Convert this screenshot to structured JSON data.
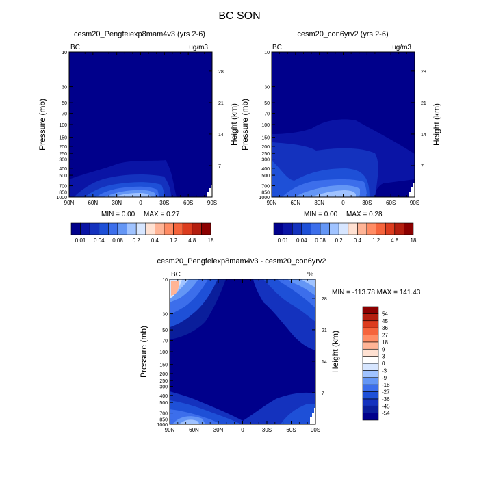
{
  "figure_title": "BC SON",
  "colors": {
    "absolute_palette": [
      "#00008b",
      "#0a14a5",
      "#1432be",
      "#1e50d7",
      "#3c6eeb",
      "#6496f5",
      "#a0c3ff",
      "#d7e6ff",
      "#ffe1d2",
      "#ffb496",
      "#ff8c64",
      "#f5643c",
      "#dc3c1e",
      "#b41e0f",
      "#8b0000"
    ],
    "diff_palette": [
      "#00008b",
      "#0a1e9b",
      "#1432be",
      "#1e50d7",
      "#3c6eeb",
      "#6496f5",
      "#a0c3ff",
      "#d7e6ff",
      "#ffffff",
      "#ffe1d2",
      "#ffb496",
      "#ff8c64",
      "#f5643c",
      "#dc3c1e",
      "#b41e0f",
      "#8b0000"
    ]
  },
  "chart_data": [
    {
      "type": "heatmap",
      "title": "cesm20_Pengfeiexp8mam4v3 (yrs 2-6)",
      "left_label": "BC",
      "right_label": "ug/m3",
      "xlabel": "",
      "ylabel": "Pressure (mb)",
      "y2label": "Height (km)",
      "x_ticks": [
        "90N",
        "60N",
        "30N",
        "0",
        "30S",
        "60S",
        "90S"
      ],
      "y_ticks": [
        "10",
        "30",
        "50",
        "70",
        "100",
        "150",
        "200",
        "250",
        "300",
        "400",
        "500",
        "700",
        "850",
        "1000"
      ],
      "y2_ticks": [
        "28",
        "21",
        "14",
        "7"
      ],
      "ylim": [
        1000,
        10
      ],
      "min_label": "MIN =   0.00",
      "max_label": "MAX =   0.27",
      "colorbar_labels": [
        "0.01",
        "0.04",
        "0.08",
        "0.2",
        "0.4",
        "1.2",
        "4.8",
        "18"
      ]
    },
    {
      "type": "heatmap",
      "title": "cesm20_con6yrv2 (yrs 2-6)",
      "left_label": "BC",
      "right_label": "ug/m3",
      "xlabel": "",
      "ylabel": "Pressure (mb)",
      "y2label": "Height (km)",
      "x_ticks": [
        "90N",
        "60N",
        "30N",
        "0",
        "30S",
        "60S",
        "90S"
      ],
      "y_ticks": [
        "10",
        "30",
        "50",
        "70",
        "100",
        "150",
        "200",
        "250",
        "300",
        "400",
        "500",
        "700",
        "850",
        "1000"
      ],
      "y2_ticks": [
        "28",
        "21",
        "14",
        "7"
      ],
      "ylim": [
        1000,
        10
      ],
      "min_label": "MIN =   0.00",
      "max_label": "MAX =   0.28",
      "colorbar_labels": [
        "0.01",
        "0.04",
        "0.08",
        "0.2",
        "0.4",
        "1.2",
        "4.8",
        "18"
      ]
    },
    {
      "type": "heatmap",
      "title": "cesm20_Pengfeiexp8mam4v3 - cesm20_con6yrv2",
      "left_label": "BC",
      "right_label": "%",
      "xlabel": "",
      "ylabel": "Pressure (mb)",
      "y2label": "Height (km)",
      "x_ticks": [
        "90N",
        "60N",
        "30N",
        "0",
        "30S",
        "60S",
        "90S"
      ],
      "y_ticks": [
        "10",
        "30",
        "50",
        "70",
        "100",
        "150",
        "200",
        "250",
        "300",
        "400",
        "500",
        "700",
        "850",
        "1000"
      ],
      "y2_ticks": [
        "28",
        "21",
        "14",
        "7"
      ],
      "ylim": [
        1000,
        10
      ],
      "minmax_label": "MIN = -113.78  MAX = 141.43",
      "colorbar_labels": [
        "54",
        "45",
        "36",
        "27",
        "18",
        "9",
        "3",
        "0",
        "-3",
        "-9",
        "-18",
        "-27",
        "-36",
        "-45",
        "-54"
      ]
    }
  ]
}
